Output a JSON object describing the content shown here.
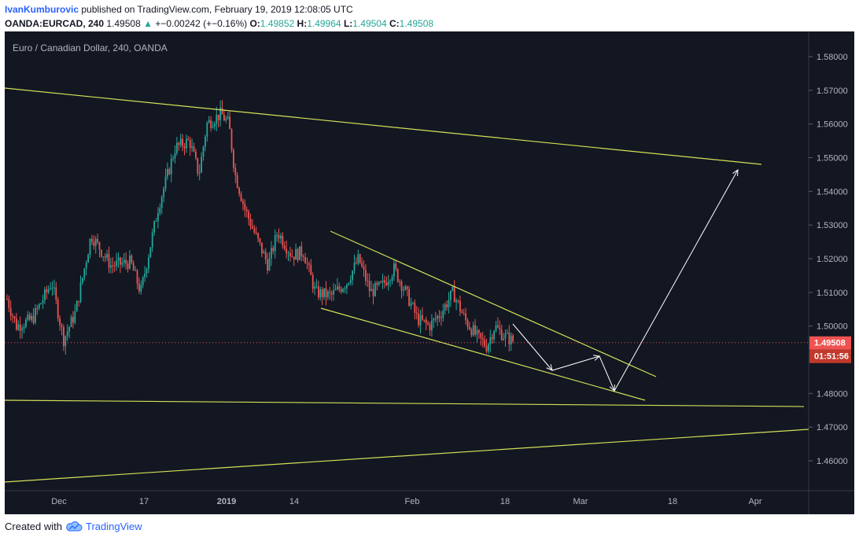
{
  "header": {
    "username": "IvanKumburovic",
    "published_text": "published on TradingView.com, February 19, 2019 12:08:05 UTC",
    "symbol": "OANDA:EURCAD, 240",
    "last": "1.49508",
    "arrow": "▲",
    "change": "+−0.00242 (+−0.16%)",
    "o_label": "O:",
    "o_value": "1.49852",
    "h_label": "H:",
    "h_value": "1.49964",
    "l_label": "L:",
    "l_value": "1.49504",
    "c_label": "C:",
    "c_value": "1.49508"
  },
  "chart": {
    "title": "Euro / Canadian Dollar, 240, OANDA",
    "price_ticks": [
      "1.58000",
      "1.57000",
      "1.56000",
      "1.55000",
      "1.54000",
      "1.53000",
      "1.52000",
      "1.51000",
      "1.50000",
      "1.48000",
      "1.47000",
      "1.46000"
    ],
    "price_tick_values": [
      1.58,
      1.57,
      1.56,
      1.55,
      1.54,
      1.53,
      1.52,
      1.51,
      1.5,
      1.48,
      1.47,
      1.46
    ],
    "current_price_label": "1.49508",
    "current_price": 1.49508,
    "countdown": "01:51:56",
    "time_ticks": [
      "Dec",
      "17",
      "2019",
      "14",
      "Feb",
      "18",
      "Mar",
      "18",
      "Apr"
    ],
    "colors": {
      "background": "#131722",
      "up": "#26a69a",
      "down": "#ef5350",
      "trendline": "#d4e157",
      "arrow": "#ffffff",
      "axis_text": "#b2b5be",
      "price_tag": "#ef5350",
      "countdown_tag": "#c0392b"
    }
  },
  "footer": {
    "created_with": "Created with",
    "brand": "TradingView",
    "logo_icon": "tradingview-cloud-icon"
  }
}
